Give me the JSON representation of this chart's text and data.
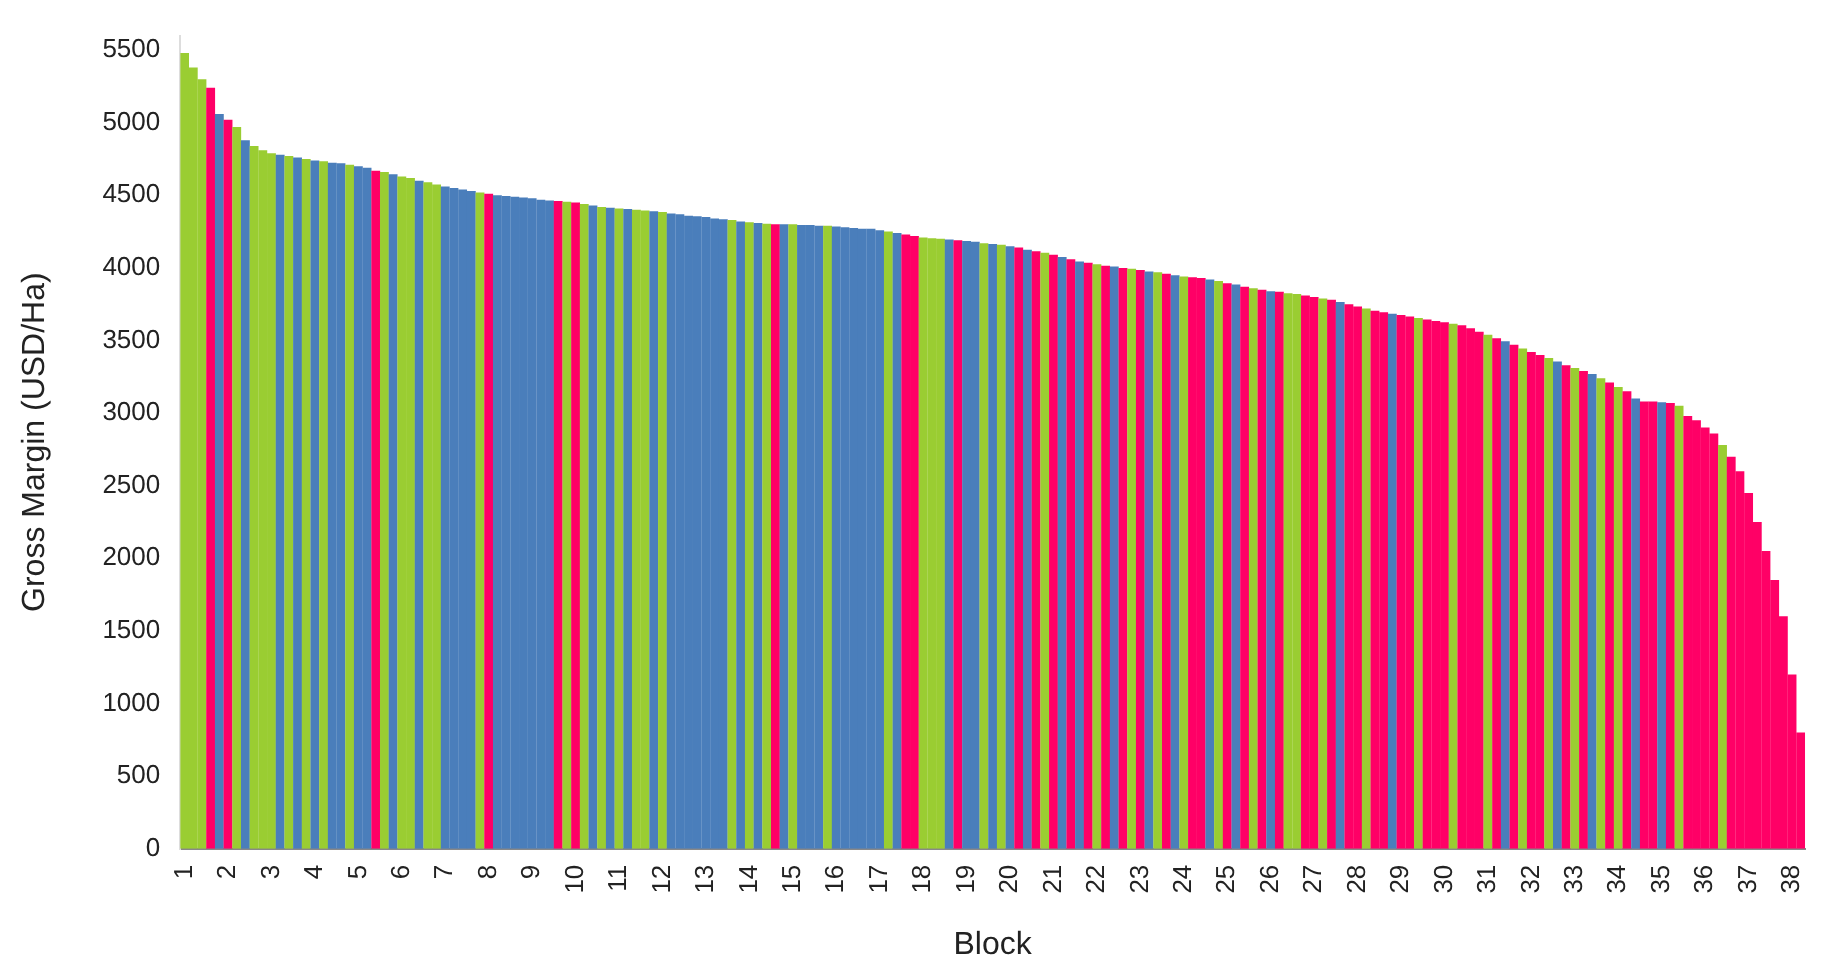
{
  "chart_data": {
    "type": "bar",
    "xlabel": "Block",
    "ylabel": "Gross Margin (USD/Ha)",
    "categories": [
      "1",
      null,
      null,
      null,
      null,
      "2",
      null,
      null,
      null,
      null,
      "3",
      null,
      null,
      null,
      null,
      "4",
      null,
      null,
      null,
      null,
      "5",
      null,
      null,
      null,
      null,
      "6",
      null,
      null,
      null,
      null,
      "7",
      null,
      null,
      null,
      null,
      "8",
      null,
      null,
      null,
      null,
      "9",
      null,
      null,
      null,
      null,
      "10",
      null,
      null,
      null,
      null,
      "11",
      null,
      null,
      null,
      null,
      "12",
      null,
      null,
      null,
      null,
      "13",
      null,
      null,
      null,
      null,
      "14",
      null,
      null,
      null,
      null,
      "15",
      null,
      null,
      null,
      null,
      "16",
      null,
      null,
      null,
      null,
      "17",
      null,
      null,
      null,
      null,
      "18",
      null,
      null,
      null,
      null,
      "19",
      null,
      null,
      null,
      null,
      "20",
      null,
      null,
      null,
      null,
      "21",
      null,
      null,
      null,
      null,
      "22",
      null,
      null,
      null,
      null,
      "23",
      null,
      null,
      null,
      null,
      "24",
      null,
      null,
      null,
      null,
      "25",
      null,
      null,
      null,
      null,
      "26",
      null,
      null,
      null,
      null,
      "27",
      null,
      null,
      null,
      null,
      "28",
      null,
      null,
      null,
      null,
      "29",
      null,
      null,
      null,
      null,
      "30",
      null,
      null,
      null,
      null,
      "31",
      null,
      null,
      null,
      null,
      "32",
      null,
      null,
      null,
      null,
      "33",
      null,
      null,
      null,
      null,
      "34",
      null,
      null,
      null,
      null,
      "35",
      null,
      null,
      null,
      null,
      "36",
      null,
      null,
      null,
      null,
      "37",
      null,
      null,
      null,
      null,
      "38",
      null
    ],
    "values": [
      5480,
      5380,
      5300,
      5240,
      5060,
      5020,
      4970,
      4880,
      4840,
      4810,
      4790,
      4780,
      4770,
      4760,
      4750,
      4740,
      4735,
      4725,
      4720,
      4710,
      4700,
      4690,
      4670,
      4660,
      4645,
      4630,
      4620,
      4600,
      4590,
      4575,
      4560,
      4550,
      4540,
      4530,
      4520,
      4510,
      4500,
      4495,
      4490,
      4485,
      4480,
      4470,
      4465,
      4460,
      4455,
      4450,
      4440,
      4430,
      4420,
      4415,
      4410,
      4405,
      4400,
      4395,
      4390,
      4385,
      4375,
      4370,
      4360,
      4355,
      4350,
      4340,
      4335,
      4330,
      4320,
      4315,
      4310,
      4305,
      4300,
      4300,
      4300,
      4295,
      4295,
      4290,
      4290,
      4285,
      4280,
      4275,
      4270,
      4270,
      4260,
      4250,
      4240,
      4230,
      4220,
      4210,
      4205,
      4200,
      4195,
      4190,
      4185,
      4180,
      4170,
      4165,
      4160,
      4150,
      4140,
      4125,
      4115,
      4105,
      4090,
      4075,
      4060,
      4045,
      4035,
      4025,
      4015,
      4010,
      4000,
      3995,
      3985,
      3975,
      3970,
      3960,
      3950,
      3940,
      3935,
      3930,
      3920,
      3910,
      3895,
      3885,
      3870,
      3860,
      3850,
      3840,
      3835,
      3825,
      3820,
      3810,
      3800,
      3790,
      3780,
      3765,
      3750,
      3735,
      3720,
      3705,
      3695,
      3685,
      3675,
      3665,
      3655,
      3645,
      3635,
      3625,
      3615,
      3605,
      3585,
      3560,
      3540,
      3515,
      3495,
      3470,
      3445,
      3420,
      3400,
      3380,
      3355,
      3330,
      3310,
      3290,
      3270,
      3240,
      3210,
      3180,
      3150,
      3100,
      3080,
      3080,
      3075,
      3070,
      3050,
      2980,
      2950,
      2900,
      2860,
      2780,
      2700,
      2600,
      2450,
      2250,
      2050,
      1850,
      1600,
      1200,
      800
    ],
    "colors": [
      "#9acd32",
      "#9acd32",
      "#9acd32",
      "#ff0066",
      "#4a7ebb",
      "#ff0066",
      "#9acd32",
      "#4a7ebb",
      "#9acd32",
      "#9acd32",
      "#9acd32",
      "#4a7ebb",
      "#9acd32",
      "#4a7ebb",
      "#9acd32",
      "#4a7ebb",
      "#9acd32",
      "#4a7ebb",
      "#4a7ebb",
      "#9acd32",
      "#4a7ebb",
      "#4a7ebb",
      "#ff0066",
      "#9acd32",
      "#4a7ebb",
      "#9acd32",
      "#9acd32",
      "#4a7ebb",
      "#9acd32",
      "#9acd32",
      "#4a7ebb",
      "#4a7ebb",
      "#4a7ebb",
      "#4a7ebb",
      "#9acd32",
      "#ff0066",
      "#4a7ebb",
      "#4a7ebb",
      "#4a7ebb",
      "#4a7ebb",
      "#4a7ebb",
      "#4a7ebb",
      "#4a7ebb",
      "#ff0066",
      "#9acd32",
      "#ff0066",
      "#9acd32",
      "#4a7ebb",
      "#9acd32",
      "#4a7ebb",
      "#9acd32",
      "#4a7ebb",
      "#9acd32",
      "#9acd32",
      "#4a7ebb",
      "#9acd32",
      "#4a7ebb",
      "#4a7ebb",
      "#4a7ebb",
      "#4a7ebb",
      "#4a7ebb",
      "#4a7ebb",
      "#4a7ebb",
      "#9acd32",
      "#4a7ebb",
      "#9acd32",
      "#4a7ebb",
      "#9acd32",
      "#ff0066",
      "#4a7ebb",
      "#9acd32",
      "#4a7ebb",
      "#4a7ebb",
      "#4a7ebb",
      "#9acd32",
      "#4a7ebb",
      "#4a7ebb",
      "#4a7ebb",
      "#4a7ebb",
      "#4a7ebb",
      "#4a7ebb",
      "#9acd32",
      "#4a7ebb",
      "#ff0066",
      "#ff0066",
      "#9acd32",
      "#9acd32",
      "#9acd32",
      "#4a7ebb",
      "#ff0066",
      "#4a7ebb",
      "#4a7ebb",
      "#9acd32",
      "#4a7ebb",
      "#9acd32",
      "#4a7ebb",
      "#ff0066",
      "#4a7ebb",
      "#ff0066",
      "#9acd32",
      "#ff0066",
      "#4a7ebb",
      "#ff0066",
      "#4a7ebb",
      "#ff0066",
      "#9acd32",
      "#ff0066",
      "#4a7ebb",
      "#ff0066",
      "#9acd32",
      "#ff0066",
      "#4a7ebb",
      "#9acd32",
      "#ff0066",
      "#4a7ebb",
      "#9acd32",
      "#ff0066",
      "#ff0066",
      "#4a7ebb",
      "#9acd32",
      "#ff0066",
      "#4a7ebb",
      "#ff0066",
      "#9acd32",
      "#ff0066",
      "#4a7ebb",
      "#ff0066",
      "#9acd32",
      "#9acd32",
      "#ff0066",
      "#ff0066",
      "#9acd32",
      "#ff0066",
      "#4a7ebb",
      "#ff0066",
      "#ff0066",
      "#9acd32",
      "#ff0066",
      "#ff0066",
      "#4a7ebb",
      "#ff0066",
      "#ff0066",
      "#9acd32",
      "#ff0066",
      "#ff0066",
      "#ff0066",
      "#9acd32",
      "#ff0066",
      "#ff0066",
      "#ff0066",
      "#9acd32",
      "#ff0066",
      "#4a7ebb",
      "#ff0066",
      "#9acd32",
      "#ff0066",
      "#ff0066",
      "#9acd32",
      "#4a7ebb",
      "#ff0066",
      "#9acd32",
      "#ff0066",
      "#4a7ebb",
      "#9acd32",
      "#ff0066",
      "#9acd32",
      "#ff0066",
      "#4a7ebb",
      "#ff0066",
      "#ff0066",
      "#4a7ebb",
      "#ff0066",
      "#9acd32",
      "#ff0066",
      "#ff0066",
      "#ff0066",
      "#ff0066",
      "#9acd32",
      "#ff0066",
      "#ff0066",
      "#ff0066",
      "#ff0066",
      "#ff0066",
      "#ff0066",
      "#ff0066",
      "#ff0066",
      "#ff0066"
    ],
    "ylim": [
      0,
      5600
    ],
    "yticks": [
      0,
      500,
      1000,
      1500,
      2000,
      2500,
      3000,
      3500,
      4000,
      4500,
      5000,
      5500
    ],
    "grid": false,
    "legend": false
  }
}
